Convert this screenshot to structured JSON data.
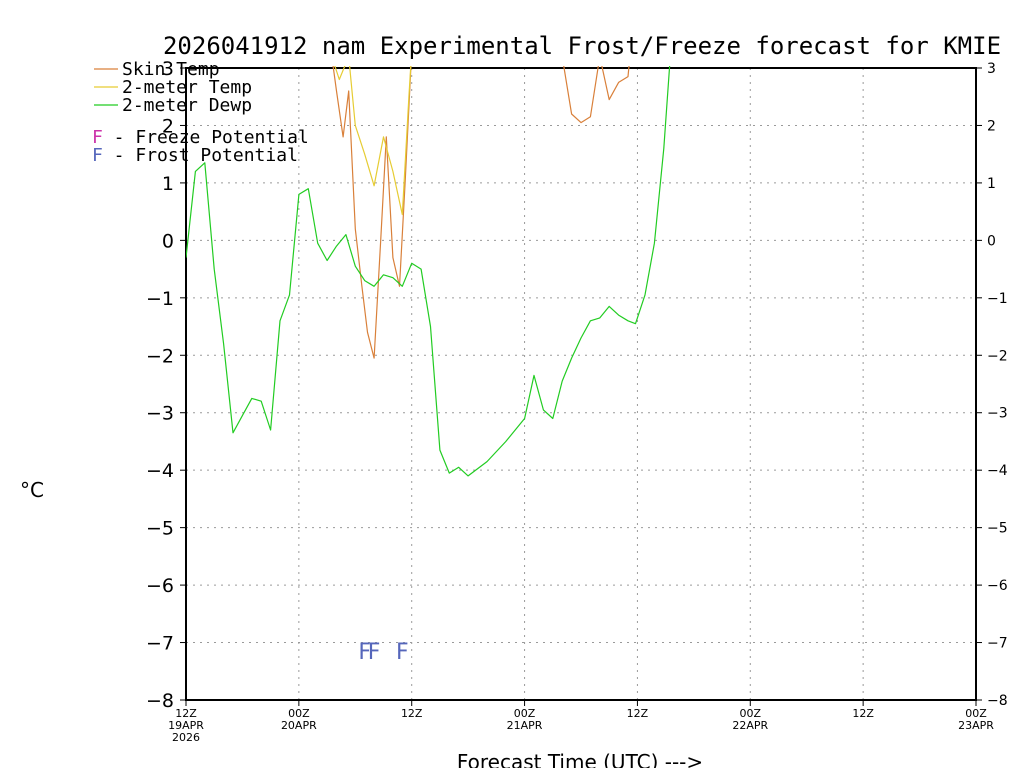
{
  "chart_data": {
    "type": "line",
    "title": "2026041912 nam Experimental Frost/Freeze forecast for KMIE",
    "ylabel": "°C",
    "xlabel": "Forecast Time (UTC) --->",
    "ylim": [
      -8,
      3
    ],
    "xlim": [
      0,
      84
    ],
    "yticks": [
      -8,
      -7,
      -6,
      -5,
      -4,
      -3,
      -2,
      -1,
      0,
      1,
      2,
      3
    ],
    "xticks": [
      {
        "x": 0,
        "line1": "12Z",
        "line2": "19APR",
        "line3": "2026"
      },
      {
        "x": 12,
        "line1": "00Z",
        "line2": "20APR",
        "line3": ""
      },
      {
        "x": 24,
        "line1": "12Z",
        "line2": "",
        "line3": ""
      },
      {
        "x": 36,
        "line1": "00Z",
        "line2": "21APR",
        "line3": ""
      },
      {
        "x": 48,
        "line1": "12Z",
        "line2": "",
        "line3": ""
      },
      {
        "x": 60,
        "line1": "00Z",
        "line2": "22APR",
        "line3": ""
      },
      {
        "x": 72,
        "line1": "12Z",
        "line2": "",
        "line3": ""
      },
      {
        "x": 84,
        "line1": "00Z",
        "line2": "23APR",
        "line3": ""
      }
    ],
    "legend": {
      "placement": "top-left",
      "series_entries": [
        {
          "label": "Skin Temp",
          "color": "#d9803a"
        },
        {
          "label": "2-meter Temp",
          "color": "#e6cc33"
        },
        {
          "label": "2-meter Dewp",
          "color": "#22cc22"
        }
      ],
      "marker_entries": [
        {
          "symbol": "F",
          "text": " - Freeze Potential",
          "color": "#cc33aa"
        },
        {
          "symbol": "F",
          "text": " - Frost Potential",
          "color": "#5566bb"
        }
      ]
    },
    "series": [
      {
        "name": "Skin Temp",
        "color": "#d9803a",
        "segments": [
          [
            [
              15.5,
              3.2
            ],
            [
              16,
              2.6
            ],
            [
              16.7,
              1.8
            ],
            [
              17.3,
              2.6
            ],
            [
              18,
              0.2
            ],
            [
              18.7,
              -0.8
            ],
            [
              19.3,
              -1.6
            ],
            [
              20,
              -2.05
            ],
            [
              20.7,
              0
            ],
            [
              21.3,
              1.8
            ],
            [
              22,
              -0.3
            ],
            [
              22.7,
              -0.8
            ],
            [
              23.3,
              1
            ],
            [
              24,
              3.3
            ]
          ],
          [
            [
              40,
              3.2
            ],
            [
              41,
              2.2
            ],
            [
              42,
              2.05
            ],
            [
              43,
              2.15
            ],
            [
              44,
              3.2
            ],
            [
              45,
              2.45
            ],
            [
              46,
              2.75
            ],
            [
              47,
              2.85
            ],
            [
              47.2,
              3.2
            ]
          ]
        ]
      },
      {
        "name": "2-meter Temp",
        "color": "#e6cc33",
        "segments": [
          [
            [
              15.5,
              3.2
            ],
            [
              16.3,
              2.8
            ],
            [
              17.3,
              3.2
            ],
            [
              18,
              2
            ],
            [
              19,
              1.5
            ],
            [
              20,
              0.95
            ],
            [
              21,
              1.8
            ],
            [
              22,
              1.2
            ],
            [
              23,
              0.45
            ],
            [
              23.7,
              2.5
            ],
            [
              24,
              3.3
            ]
          ]
        ]
      },
      {
        "name": "2-meter Dewp",
        "color": "#22cc22",
        "segments": [
          [
            [
              0,
              -0.3
            ],
            [
              1,
              1.2
            ],
            [
              2,
              1.35
            ],
            [
              3,
              -0.5
            ],
            [
              4,
              -1.8
            ],
            [
              5,
              -3.35
            ],
            [
              6,
              -3.05
            ],
            [
              7,
              -2.75
            ],
            [
              8,
              -2.8
            ],
            [
              9,
              -3.3
            ],
            [
              10,
              -1.4
            ],
            [
              11,
              -0.95
            ],
            [
              12,
              0.8
            ],
            [
              13,
              0.9
            ],
            [
              14,
              -0.05
            ],
            [
              15,
              -0.35
            ],
            [
              16,
              -0.1
            ],
            [
              17,
              0.1
            ],
            [
              18,
              -0.45
            ],
            [
              19,
              -0.7
            ],
            [
              20,
              -0.8
            ],
            [
              21,
              -0.6
            ],
            [
              22,
              -0.65
            ],
            [
              23,
              -0.8
            ],
            [
              24,
              -0.4
            ],
            [
              25,
              -0.5
            ],
            [
              26,
              -1.5
            ],
            [
              27,
              -3.65
            ],
            [
              28,
              -4.05
            ],
            [
              29,
              -3.95
            ],
            [
              30,
              -4.1
            ],
            [
              32,
              -3.85
            ],
            [
              34,
              -3.5
            ],
            [
              35,
              -3.3
            ],
            [
              36,
              -3.1
            ],
            [
              37,
              -2.35
            ],
            [
              38,
              -2.95
            ],
            [
              39,
              -3.1
            ],
            [
              40,
              -2.45
            ],
            [
              41,
              -2.05
            ],
            [
              42,
              -1.7
            ],
            [
              43,
              -1.4
            ],
            [
              44,
              -1.35
            ],
            [
              45,
              -1.15
            ],
            [
              46,
              -1.3
            ],
            [
              47,
              -1.4
            ],
            [
              47.8,
              -1.45
            ],
            [
              48.8,
              -0.95
            ],
            [
              49.8,
              -0.05
            ],
            [
              50.8,
              1.6
            ],
            [
              51.5,
              3.2
            ]
          ]
        ]
      }
    ],
    "markers": [
      {
        "x": 19.0,
        "y": -7.15,
        "symbol": "F",
        "color": "#5566bb"
      },
      {
        "x": 20.0,
        "y": -7.15,
        "symbol": "F",
        "color": "#5566bb"
      },
      {
        "x": 23.0,
        "y": -7.15,
        "symbol": "F",
        "color": "#5566bb"
      }
    ]
  }
}
